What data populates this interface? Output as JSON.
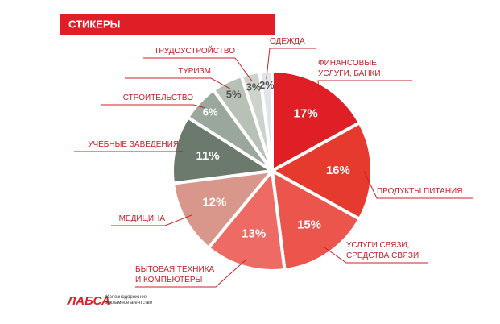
{
  "chart_data": {
    "type": "pie",
    "title": "СТИКЕРЫ",
    "categories": [
      "ФИНАНСОВЫЕ УСЛУГИ, БАНКИ",
      "ПРОДУКТЫ ПИТАНИЯ",
      "УСЛУГИ СВЯЗИ, СРЕДСТВА СВЯЗИ",
      "БЫТОВАЯ ТЕХНИКА И КОМПЬЮТЕРЫ",
      "МЕДИЦИНА",
      "УЧЕБНЫЕ ЗАВЕДЕНИЯ",
      "СТРОИТЕЛЬСТВО",
      "ТУРИЗМ",
      "ТРУДОУСТРОЙСТВО",
      "ОДЕЖДА"
    ],
    "values": [
      17,
      16,
      15,
      13,
      12,
      11,
      6,
      5,
      3,
      2
    ],
    "value_labels": [
      "17%",
      "16%",
      "15%",
      "13%",
      "12%",
      "11%",
      "6%",
      "5%",
      "3%",
      "2%"
    ],
    "colors": [
      "#e01e26",
      "#e63a2f",
      "#ec554b",
      "#ee6a64",
      "#d9968a",
      "#6b7a6d",
      "#9aa79b",
      "#b7c1b6",
      "#cbd3ca",
      "#e0e5e9"
    ]
  },
  "footer": {
    "logo": "ЛАБСА",
    "tagline": "Железнодорожное рекламное агентство"
  }
}
